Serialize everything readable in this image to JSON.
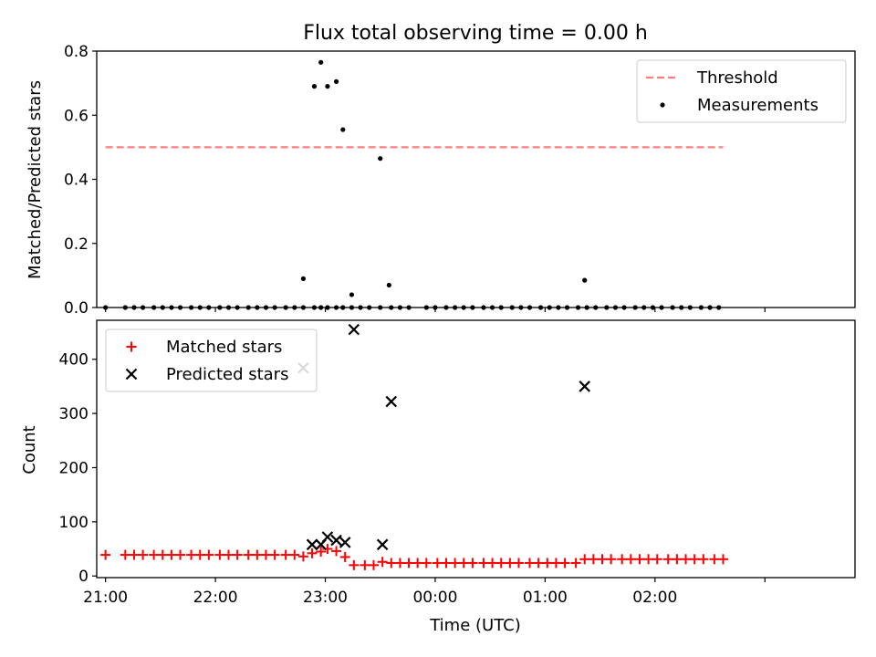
{
  "figure": {
    "title": "Flux total observing time = 0.00 h"
  },
  "chart_data": [
    {
      "type": "scatter",
      "panel": "top",
      "xlabel": "",
      "ylabel": "Matched/Predicted stars",
      "xlim": [
        -0.04,
        3.41
      ],
      "ylim": [
        0,
        0.8
      ],
      "yticks": [
        0.0,
        0.2,
        0.4,
        0.6,
        0.8
      ],
      "ytick_labels": [
        "0.0",
        "0.2",
        "0.4",
        "0.6",
        "0.8"
      ],
      "xticks": [
        0,
        0.5,
        1.0,
        1.5,
        2.0,
        2.5,
        3.0
      ],
      "show_xtick_labels": false,
      "grid": false,
      "legend_position": "upper right",
      "series": [
        {
          "name": "Threshold",
          "kind": "line",
          "style": "dashed",
          "color": "#ff7f7f",
          "x": [
            0,
            2.81
          ],
          "y": [
            0.5,
            0.5
          ]
        },
        {
          "name": "Measurements",
          "kind": "scatter",
          "marker": "dot",
          "color": "#000000",
          "x": [
            0,
            0.09,
            0.13,
            0.17,
            0.22,
            0.26,
            0.3,
            0.34,
            0.39,
            0.43,
            0.47,
            0.52,
            0.56,
            0.6,
            0.65,
            0.69,
            0.73,
            0.77,
            0.82,
            0.86,
            0.9,
            0.95,
            0.98,
            1.01,
            1.05,
            1.08,
            1.12,
            1.16,
            1.2,
            1.25,
            1.3,
            1.34,
            1.38,
            1.46,
            1.5,
            1.55,
            1.59,
            1.63,
            1.67,
            1.72,
            1.76,
            1.8,
            1.85,
            1.89,
            1.93,
            1.98,
            2.02,
            2.06,
            2.1,
            2.15,
            2.19,
            2.23,
            2.28,
            2.32,
            2.36,
            2.41,
            2.45,
            2.49,
            2.53,
            2.58,
            2.62,
            2.66,
            2.71,
            2.75,
            2.79
          ],
          "y": [
            0,
            0,
            0,
            0,
            0,
            0,
            0,
            0,
            0,
            0,
            0,
            0,
            0,
            0,
            0,
            0,
            0,
            0,
            0,
            0,
            0,
            0,
            0,
            0,
            0,
            0,
            0,
            0,
            0,
            0,
            0,
            0,
            0,
            0,
            0,
            0,
            0,
            0,
            0,
            0,
            0,
            0,
            0,
            0,
            0,
            0,
            0,
            0,
            0,
            0,
            0,
            0,
            0,
            0,
            0,
            0,
            0,
            0,
            0,
            0,
            0,
            0,
            0,
            0,
            0
          ]
        },
        {
          "name": "",
          "kind": "scatter",
          "marker": "dot",
          "color": "#000000",
          "x": [
            0.9,
            0.95,
            0.98,
            1.01,
            1.05,
            1.08,
            1.12,
            1.25,
            1.29,
            2.18
          ],
          "y": [
            0.09,
            0.69,
            0.765,
            0.69,
            0.705,
            0.555,
            0.04,
            0.465,
            0.07,
            0.085
          ]
        }
      ]
    },
    {
      "type": "scatter",
      "panel": "bottom",
      "xlabel": "Time (UTC)",
      "ylabel": "Count",
      "xlim": [
        -0.04,
        3.41
      ],
      "ylim": [
        -3,
        472
      ],
      "yticks": [
        0,
        100,
        200,
        300,
        400
      ],
      "ytick_labels": [
        "0",
        "100",
        "200",
        "300",
        "400"
      ],
      "xticks": [
        0,
        0.5,
        1.0,
        1.5,
        2.0,
        2.5,
        3.0
      ],
      "xtick_labels": [
        "21:00",
        "22:00",
        "23:00",
        "00:00",
        "01:00",
        "02:00",
        ""
      ],
      "grid": false,
      "legend_position": "upper left",
      "series": [
        {
          "name": "Matched stars",
          "kind": "scatter",
          "marker": "plus",
          "color": "#ff0000",
          "x": [
            0,
            0.09,
            0.13,
            0.17,
            0.22,
            0.26,
            0.3,
            0.34,
            0.39,
            0.43,
            0.47,
            0.52,
            0.56,
            0.6,
            0.65,
            0.69,
            0.73,
            0.77,
            0.82,
            0.86,
            0.9,
            0.94,
            0.98,
            1.01,
            1.05,
            1.09,
            1.13,
            1.18,
            1.22,
            1.26,
            1.3,
            1.34,
            1.38,
            1.42,
            1.46,
            1.51,
            1.55,
            1.59,
            1.63,
            1.67,
            1.72,
            1.76,
            1.8,
            1.84,
            1.88,
            1.93,
            1.97,
            2.01,
            2.05,
            2.09,
            2.14,
            2.18,
            2.22,
            2.26,
            2.3,
            2.35,
            2.39,
            2.43,
            2.47,
            2.51,
            2.56,
            2.6,
            2.64,
            2.68,
            2.72,
            2.77,
            2.81
          ],
          "y": [
            39,
            39,
            39,
            39,
            39,
            39,
            39,
            39,
            39,
            39,
            39,
            39,
            39,
            39,
            39,
            39,
            39,
            39,
            39,
            39,
            36,
            42,
            45,
            50,
            46,
            35,
            20,
            20,
            20,
            26,
            24,
            24,
            24,
            24,
            24,
            24,
            24,
            24,
            24,
            24,
            24,
            24,
            24,
            24,
            24,
            24,
            24,
            24,
            24,
            24,
            24,
            31,
            31,
            31,
            31,
            31,
            31,
            31,
            31,
            31,
            31,
            31,
            31,
            31,
            31,
            31,
            31
          ]
        },
        {
          "name": "Predicted stars",
          "kind": "scatter",
          "marker": "x",
          "color": "#000000",
          "x": [
            0.9,
            0.94,
            0.98,
            1.01,
            1.05,
            1.09,
            1.13,
            1.26,
            1.3,
            2.18
          ],
          "y": [
            384,
            58,
            58,
            72,
            66,
            62,
            455,
            58,
            322,
            350
          ]
        }
      ]
    }
  ]
}
